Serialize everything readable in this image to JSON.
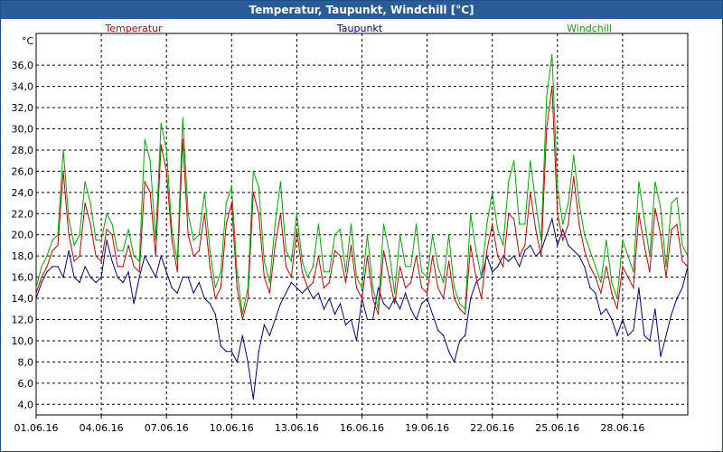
{
  "window": {
    "title": "Temperatur, Taupunkt, Windchill [°C]"
  },
  "chart_data": {
    "type": "line",
    "title": "Temperatur, Taupunkt, Windchill [°C]",
    "ylabel": "°C",
    "ylim": [
      3.0,
      39.0
    ],
    "xlim": [
      0,
      30
    ],
    "yticks": [
      "4,0",
      "6,0",
      "8,0",
      "10,0",
      "12,0",
      "14,0",
      "16,0",
      "18,0",
      "20,0",
      "22,0",
      "24,0",
      "26,0",
      "28,0",
      "30,0",
      "32,0",
      "34,0",
      "36,0"
    ],
    "xticks": [
      "01.06.16",
      "04.06.16",
      "07.06.16",
      "10.06.16",
      "13.06.16",
      "16.06.16",
      "19.06.16",
      "22.06.16",
      "25.06.16",
      "28.06.16"
    ],
    "grid": true,
    "legend_placement": "top",
    "series": [
      {
        "name": "Temperatur",
        "color": "#cc0000",
        "x": [
          0,
          0.25,
          0.5,
          0.75,
          1,
          1.25,
          1.5,
          1.75,
          2,
          2.25,
          2.5,
          2.75,
          3,
          3.25,
          3.5,
          3.75,
          4,
          4.25,
          4.5,
          4.75,
          5,
          5.25,
          5.5,
          5.75,
          6,
          6.25,
          6.5,
          6.75,
          7,
          7.25,
          7.5,
          7.75,
          8,
          8.25,
          8.5,
          8.75,
          9,
          9.25,
          9.5,
          9.75,
          10,
          10.25,
          10.5,
          10.75,
          11,
          11.25,
          11.5,
          11.75,
          12,
          12.25,
          12.5,
          12.75,
          13,
          13.25,
          13.5,
          13.75,
          14,
          14.25,
          14.5,
          14.75,
          15,
          15.25,
          15.5,
          15.75,
          16,
          16.25,
          16.5,
          16.75,
          17,
          17.25,
          17.5,
          17.75,
          18,
          18.25,
          18.5,
          18.75,
          19,
          19.25,
          19.5,
          19.75,
          20,
          20.25,
          20.5,
          20.75,
          21,
          21.25,
          21.5,
          21.75,
          22,
          22.25,
          22.5,
          22.75,
          23,
          23.25,
          23.5,
          23.75,
          24,
          24.25,
          24.5,
          24.75,
          25,
          25.25,
          25.5,
          25.75,
          26,
          26.25,
          26.5,
          26.75,
          27,
          27.25,
          27.5,
          27.75,
          28,
          28.25,
          28.5,
          28.75,
          29,
          29.25,
          29.5,
          29.75,
          30
        ],
        "values": [
          14.5,
          16.0,
          17.0,
          18.5,
          19.0,
          26.0,
          20.0,
          17.5,
          18.0,
          23.0,
          21.0,
          18.0,
          17.5,
          20.5,
          20.0,
          17.0,
          17.0,
          19.0,
          17.0,
          16.5,
          25.0,
          24.0,
          18.0,
          28.5,
          26.0,
          19.5,
          16.5,
          29.0,
          20.0,
          18.0,
          18.5,
          22.0,
          17.0,
          14.0,
          15.0,
          21.0,
          23.0,
          15.0,
          12.0,
          14.0,
          24.0,
          22.0,
          16.0,
          14.5,
          19.0,
          22.0,
          17.0,
          16.0,
          20.5,
          16.5,
          15.0,
          15.5,
          18.0,
          15.0,
          15.5,
          18.5,
          18.0,
          15.5,
          19.0,
          15.0,
          14.0,
          18.0,
          14.0,
          12.5,
          18.5,
          16.0,
          13.5,
          17.0,
          15.0,
          15.5,
          18.0,
          15.0,
          14.5,
          18.0,
          15.0,
          14.0,
          17.5,
          14.0,
          13.0,
          12.5,
          19.0,
          16.0,
          14.0,
          18.5,
          21.0,
          18.0,
          17.0,
          22.0,
          21.5,
          18.0,
          19.0,
          24.0,
          20.5,
          18.0,
          30.0,
          34.0,
          22.0,
          19.5,
          21.0,
          25.5,
          21.0,
          18.5,
          17.0,
          16.0,
          14.5,
          17.0,
          14.5,
          13.0,
          17.0,
          16.0,
          15.0,
          22.0,
          19.0,
          16.5,
          22.5,
          20.0,
          16.0,
          20.5,
          21.0,
          17.5,
          17.0
        ],
        "marks": [
          0,
          1,
          2,
          3,
          4,
          5,
          6,
          7,
          8,
          9,
          10,
          11,
          12,
          13,
          14,
          15,
          16,
          17,
          18,
          19,
          20,
          21,
          22,
          23,
          24,
          25,
          26,
          27,
          28,
          29,
          30,
          31,
          32,
          33,
          34,
          35,
          36,
          37,
          38,
          39,
          40,
          41,
          42,
          43,
          44,
          45,
          46,
          47,
          48,
          49,
          50,
          51,
          52,
          53,
          54,
          55,
          56,
          57,
          58,
          59,
          60,
          61,
          62,
          63,
          64,
          65,
          66,
          67,
          68,
          69,
          70,
          71,
          72,
          73,
          74,
          75,
          76,
          77,
          78,
          79,
          80,
          81,
          82,
          83,
          84,
          85,
          86,
          87,
          88,
          89,
          90,
          91,
          92,
          93,
          94,
          95,
          96,
          97,
          98,
          99,
          100,
          101,
          102,
          103,
          104,
          105,
          106,
          107,
          108,
          109,
          110,
          111,
          112,
          113,
          114,
          115,
          116,
          117,
          118,
          119,
          120
        ]
      },
      {
        "name": "Taupunkt",
        "color": "#00008b",
        "x": [
          0,
          0.25,
          0.5,
          0.75,
          1,
          1.25,
          1.5,
          1.75,
          2,
          2.25,
          2.5,
          2.75,
          3,
          3.25,
          3.5,
          3.75,
          4,
          4.25,
          4.5,
          4.75,
          5,
          5.25,
          5.5,
          5.75,
          6,
          6.25,
          6.5,
          6.75,
          7,
          7.25,
          7.5,
          7.75,
          8,
          8.25,
          8.5,
          8.75,
          9,
          9.25,
          9.5,
          9.75,
          10,
          10.25,
          10.5,
          10.75,
          11,
          11.25,
          11.5,
          11.75,
          12,
          12.25,
          12.5,
          12.75,
          13,
          13.25,
          13.5,
          13.75,
          14,
          14.25,
          14.5,
          14.75,
          15,
          15.25,
          15.5,
          15.75,
          16,
          16.25,
          16.5,
          16.75,
          17,
          17.25,
          17.5,
          17.75,
          18,
          18.25,
          18.5,
          18.75,
          19,
          19.25,
          19.5,
          19.75,
          20,
          20.25,
          20.5,
          20.75,
          21,
          21.25,
          21.5,
          21.75,
          22,
          22.25,
          22.5,
          22.75,
          23,
          23.25,
          23.5,
          23.75,
          24,
          24.25,
          24.5,
          24.75,
          25,
          25.25,
          25.5,
          25.75,
          26,
          26.25,
          26.5,
          26.75,
          27,
          27.25,
          27.5,
          27.75,
          28,
          28.25,
          28.5,
          28.75,
          29,
          29.25,
          29.5,
          29.75,
          30
        ],
        "values": [
          14.0,
          15.5,
          16.5,
          17.0,
          17.0,
          16.0,
          18.5,
          16.0,
          15.5,
          17.0,
          16.0,
          15.5,
          16.0,
          19.5,
          17.5,
          16.0,
          15.5,
          16.5,
          13.5,
          16.0,
          18.0,
          17.0,
          16.0,
          18.0,
          16.5,
          15.0,
          14.5,
          16.0,
          16.0,
          14.5,
          15.5,
          14.0,
          13.5,
          12.5,
          9.5,
          9.0,
          9.0,
          8.0,
          10.5,
          8.0,
          4.5,
          9.0,
          11.5,
          10.5,
          12.0,
          13.5,
          14.5,
          15.5,
          15.0,
          14.5,
          15.0,
          14.0,
          14.5,
          13.0,
          14.0,
          12.5,
          13.5,
          11.5,
          12.0,
          10.0,
          14.0,
          12.0,
          12.0,
          15.0,
          13.5,
          13.0,
          14.0,
          13.0,
          14.5,
          13.0,
          12.0,
          13.5,
          14.0,
          12.5,
          11.0,
          10.5,
          9.0,
          8.0,
          10.0,
          10.5,
          14.0,
          15.5,
          16.0,
          18.0,
          16.5,
          17.0,
          18.0,
          17.5,
          18.0,
          17.0,
          18.5,
          19.0,
          18.0,
          18.5,
          20.0,
          21.5,
          19.0,
          20.5,
          19.0,
          18.5,
          18.0,
          17.0,
          15.0,
          14.5,
          12.5,
          13.0,
          12.0,
          10.5,
          12.0,
          10.5,
          11.0,
          15.0,
          10.5,
          10.0,
          13.0,
          8.5,
          10.5,
          12.5,
          14.0,
          15.0,
          17.0
        ],
        "marks": [
          0,
          1,
          2,
          3,
          4,
          5,
          6,
          7,
          8,
          9,
          10,
          11,
          12,
          13,
          14,
          15,
          16,
          17,
          18,
          19,
          20,
          21,
          22,
          23,
          24,
          25,
          26,
          27,
          28,
          29,
          30,
          31,
          32,
          33,
          34,
          35,
          36,
          37,
          38,
          39,
          40,
          41,
          42,
          43,
          44,
          45,
          46,
          47,
          48,
          49,
          50,
          51,
          52,
          53,
          54,
          55,
          56,
          57,
          58,
          59,
          60,
          61,
          62,
          63,
          64,
          65,
          66,
          67,
          68,
          69,
          70,
          71,
          72,
          73,
          74,
          75,
          76,
          77,
          78,
          79,
          80,
          81,
          82,
          83,
          84,
          85,
          86,
          87,
          88,
          89,
          90,
          91,
          92,
          93,
          94,
          95,
          96,
          97,
          98,
          99,
          100,
          101,
          102,
          103,
          104,
          105,
          106,
          107,
          108,
          109,
          110,
          111,
          112,
          113,
          114,
          115,
          116,
          117,
          118,
          119,
          120
        ]
      },
      {
        "name": "Windchill",
        "color": "#00aa00",
        "x": [
          0,
          0.25,
          0.5,
          0.75,
          1,
          1.25,
          1.5,
          1.75,
          2,
          2.25,
          2.5,
          2.75,
          3,
          3.25,
          3.5,
          3.75,
          4,
          4.25,
          4.5,
          4.75,
          5,
          5.25,
          5.5,
          5.75,
          6,
          6.25,
          6.5,
          6.75,
          7,
          7.25,
          7.5,
          7.75,
          8,
          8.25,
          8.5,
          8.75,
          9,
          9.25,
          9.5,
          9.75,
          10,
          10.25,
          10.5,
          10.75,
          11,
          11.25,
          11.5,
          11.75,
          12,
          12.25,
          12.5,
          12.75,
          13,
          13.25,
          13.5,
          13.75,
          14,
          14.25,
          14.5,
          14.75,
          15,
          15.25,
          15.5,
          15.75,
          16,
          16.25,
          16.5,
          16.75,
          17,
          17.25,
          17.5,
          17.75,
          18,
          18.25,
          18.5,
          18.75,
          19,
          19.25,
          19.5,
          19.75,
          20,
          20.25,
          20.5,
          20.75,
          21,
          21.25,
          21.5,
          21.75,
          22,
          22.25,
          22.5,
          22.75,
          23,
          23.25,
          23.5,
          23.75,
          24,
          24.25,
          24.5,
          24.75,
          25,
          25.25,
          25.5,
          25.75,
          26,
          26.25,
          26.5,
          26.75,
          27,
          27.25,
          27.5,
          27.75,
          28,
          28.25,
          28.5,
          28.75,
          29,
          29.25,
          29.5,
          29.75,
          30
        ],
        "values": [
          15.0,
          17.0,
          18.0,
          19.5,
          20.0,
          28.0,
          21.5,
          19.0,
          20.0,
          25.0,
          23.0,
          19.5,
          19.5,
          22.0,
          21.0,
          18.5,
          18.5,
          20.5,
          18.0,
          17.5,
          29.0,
          27.0,
          19.5,
          30.5,
          28.0,
          20.5,
          17.5,
          31.0,
          22.0,
          19.5,
          20.0,
          24.0,
          18.5,
          15.0,
          16.5,
          23.0,
          24.5,
          16.5,
          12.5,
          15.0,
          26.0,
          24.5,
          17.5,
          15.5,
          21.0,
          25.0,
          18.5,
          17.5,
          22.0,
          17.5,
          16.0,
          17.0,
          21.0,
          16.5,
          16.5,
          20.0,
          20.5,
          16.5,
          21.0,
          16.0,
          15.0,
          20.0,
          15.0,
          13.0,
          21.0,
          18.5,
          14.5,
          20.0,
          17.0,
          17.0,
          21.0,
          16.5,
          16.0,
          20.0,
          17.0,
          15.5,
          20.0,
          15.0,
          13.5,
          13.0,
          22.0,
          18.5,
          16.0,
          21.0,
          24.0,
          20.5,
          19.0,
          25.0,
          27.0,
          21.0,
          21.0,
          27.0,
          23.0,
          19.5,
          33.0,
          37.0,
          24.5,
          21.0,
          23.0,
          27.5,
          23.0,
          20.0,
          18.5,
          17.0,
          15.5,
          19.5,
          15.5,
          14.0,
          19.5,
          18.0,
          16.5,
          25.0,
          21.5,
          18.0,
          25.0,
          22.5,
          17.0,
          23.0,
          23.5,
          19.0,
          18.0
        ],
        "marks": [
          0,
          1,
          2,
          3,
          4,
          5,
          6,
          7,
          8,
          9,
          10,
          11,
          12,
          13,
          14,
          15,
          16,
          17,
          18,
          19,
          20,
          21,
          22,
          23,
          24,
          25,
          26,
          27,
          28,
          29,
          30,
          31,
          32,
          33,
          34,
          35,
          36,
          37,
          38,
          39,
          40,
          41,
          42,
          43,
          44,
          45,
          46,
          47,
          48,
          49,
          50,
          51,
          52,
          53,
          54,
          55,
          56,
          57,
          58,
          59,
          60,
          61,
          62,
          63,
          64,
          65,
          66,
          67,
          68,
          69,
          70,
          71,
          72,
          73,
          74,
          75,
          76,
          77,
          78,
          79,
          80,
          81,
          82,
          83,
          84,
          85,
          86,
          87,
          88,
          89,
          90,
          91,
          92,
          93,
          94,
          95,
          96,
          97,
          98,
          99,
          100,
          101,
          102,
          103,
          104,
          105,
          106,
          107,
          108,
          109,
          110,
          111,
          112,
          113,
          114,
          115,
          116,
          117,
          118,
          119,
          120
        ]
      }
    ]
  }
}
